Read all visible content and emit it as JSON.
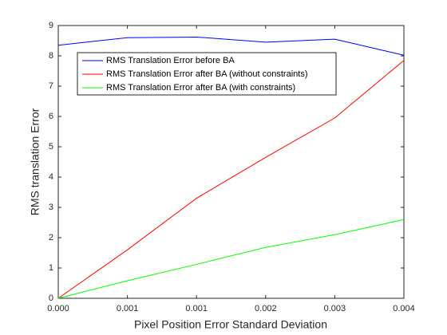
{
  "chart_data": {
    "type": "line",
    "x_label": "Pixel Position Error Standard Deviation",
    "y_label": "RMS translation Error",
    "categories": [
      "0.000",
      "0.001",
      "0.001",
      "0.002",
      "0.003",
      "0.004"
    ],
    "series": [
      {
        "name": "RMS Translation Error before BA",
        "color": "#0000ff",
        "values": [
          8.35,
          8.6,
          8.62,
          8.45,
          8.55,
          8.02
        ]
      },
      {
        "name": "RMS Translation Error after BA (without constraints)",
        "color": "#ff0000",
        "values": [
          0,
          1.6,
          3.3,
          4.65,
          5.95,
          7.85
        ]
      },
      {
        "name": "RMS Translation Error after BA (with constraints)",
        "color": "#00ff00",
        "values": [
          0,
          0.58,
          1.12,
          1.68,
          2.1,
          2.6
        ]
      }
    ],
    "ylim": [
      0,
      9
    ],
    "yticks": [
      0,
      1,
      2,
      3,
      4,
      5,
      6,
      7,
      8,
      9
    ],
    "grid": false,
    "legend": "upper-left"
  }
}
